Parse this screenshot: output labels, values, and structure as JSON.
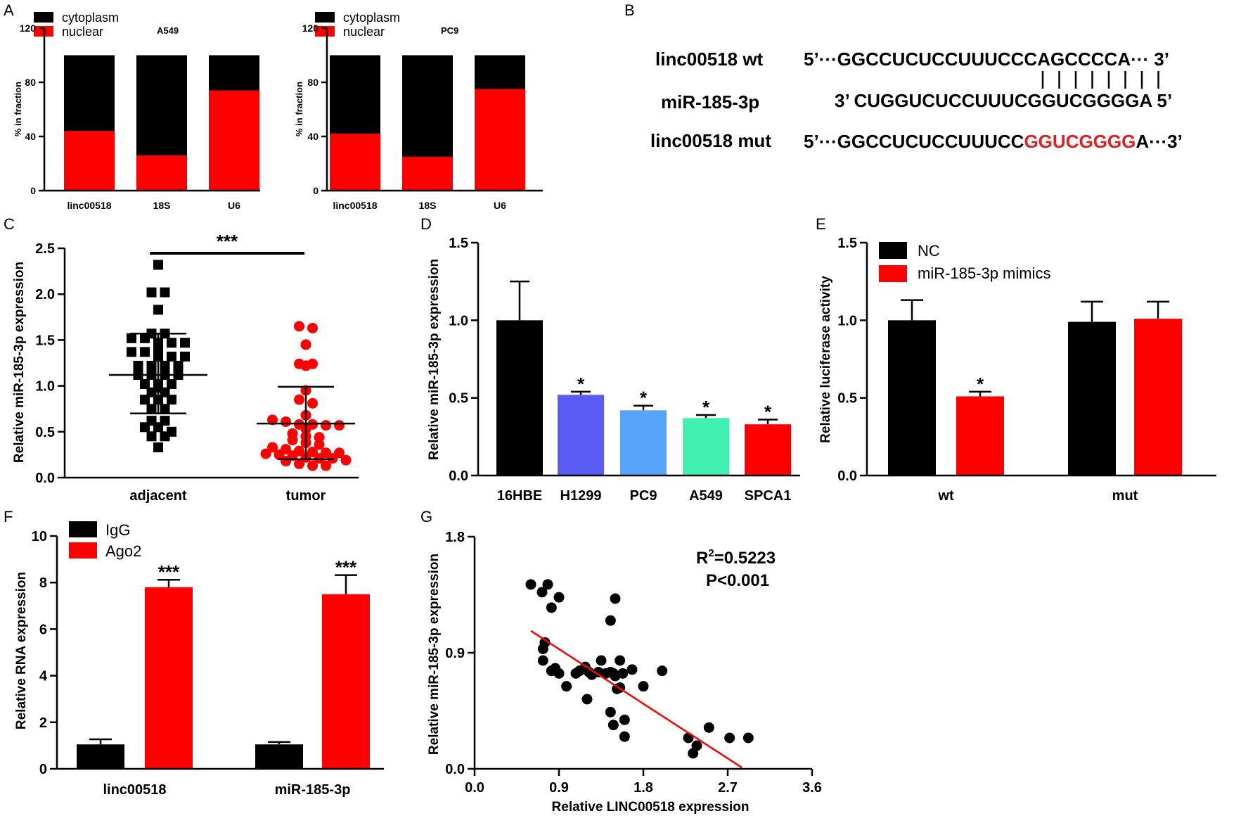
{
  "panels": {
    "A": "A",
    "B": "B",
    "C": "C",
    "D": "D",
    "E": "E",
    "F": "F",
    "G": "G"
  },
  "colors": {
    "black": "#000000",
    "red": "#ff0000",
    "H1299": "#5a5af5",
    "PC9": "#57a4fa",
    "A549": "#3ff0b0",
    "SPCA1": "#ff0000",
    "errorbar": "#000000"
  },
  "panel_b": {
    "wt_label": "linc00518 wt",
    "mir_label": "miR-185-3p",
    "mut_label": "linc00518 mut",
    "wt_seq": {
      "prefix": "5’···",
      "seq": "GGCCUCUCCUUUCCCAGCCCCA",
      "suffix": "··· 3’"
    },
    "mir_seq": {
      "prefix": "3’ ",
      "seq": "CUGGUCUCCUUUCGGUCGGGGA",
      "suffix": " 5’"
    },
    "mut_seq": {
      "prefix": "5’···",
      "normal": "GGCCUCUCCUUUCC",
      "mutated": "GGUCGGGG",
      "tail": "A",
      "suffix": "···3’"
    },
    "pairing_lines": 8
  },
  "chart_data": [
    {
      "id": "A-left",
      "type": "bar",
      "stacked": true,
      "title": "A549",
      "categories": [
        "linc00518",
        "18S",
        "U6"
      ],
      "series": [
        {
          "name": "nuclear",
          "values": [
            44,
            26,
            74
          ]
        },
        {
          "name": "cytoplasm",
          "values": [
            56,
            74,
            26
          ]
        }
      ],
      "legend": [
        "cytoplasm",
        "nuclear"
      ],
      "ylabel": "% in fraction",
      "ylim": [
        0,
        120
      ],
      "yticks": [
        "0",
        "40",
        "80",
        "120"
      ]
    },
    {
      "id": "A-right",
      "type": "bar",
      "stacked": true,
      "title": "PC9",
      "categories": [
        "linc00518",
        "18S",
        "U6"
      ],
      "series": [
        {
          "name": "nuclear",
          "values": [
            42,
            25,
            75
          ]
        },
        {
          "name": "cytoplasm",
          "values": [
            58,
            75,
            25
          ]
        }
      ],
      "legend": [
        "cytoplasm",
        "nuclear"
      ],
      "ylabel": "% in fraction",
      "ylim": [
        0,
        120
      ],
      "yticks": [
        "0",
        "40",
        "80",
        "120"
      ]
    },
    {
      "id": "C",
      "type": "scatter",
      "categories": [
        "adjacent",
        "tumor"
      ],
      "groups": [
        {
          "name": "adjacent",
          "marker": "square",
          "mean": 1.12,
          "sd_low": 0.7,
          "sd_high": 1.57,
          "values": [
            2.32,
            2.02,
            2.02,
            1.83,
            1.57,
            1.57,
            1.52,
            1.52,
            1.47,
            1.47,
            1.47,
            1.42,
            1.37,
            1.37,
            1.32,
            1.32,
            1.32,
            1.22,
            1.22,
            1.22,
            1.22,
            1.12,
            1.12,
            1.12,
            1.12,
            1.02,
            1.02,
            1.02,
            0.98,
            0.93,
            0.93,
            0.85,
            0.85,
            0.85,
            0.75,
            0.75,
            0.62,
            0.62,
            0.55,
            0.55,
            0.5,
            0.45,
            0.45,
            0.33
          ]
        },
        {
          "name": "tumor",
          "marker": "circle",
          "mean": 0.59,
          "sd_low": 0.2,
          "sd_high": 0.99,
          "values": [
            1.65,
            1.63,
            1.45,
            1.24,
            1.24,
            1.22,
            0.95,
            0.85,
            0.81,
            0.68,
            0.63,
            0.61,
            0.58,
            0.58,
            0.57,
            0.57,
            0.53,
            0.48,
            0.45,
            0.44,
            0.41,
            0.38,
            0.36,
            0.33,
            0.31,
            0.29,
            0.28,
            0.27,
            0.27,
            0.26,
            0.25,
            0.24,
            0.22,
            0.21,
            0.21,
            0.19,
            0.18,
            0.15,
            0.13,
            0.13
          ]
        }
      ],
      "significance": "***",
      "ylabel": "Relative miR-185-3p expression",
      "ylim": [
        0,
        2.5
      ],
      "yticks": [
        "0.0",
        "0.5",
        "1.0",
        "1.5",
        "2.0",
        "2.5"
      ]
    },
    {
      "id": "D",
      "type": "bar",
      "categories": [
        "16HBE",
        "H1299",
        "PC9",
        "A549",
        "SPCA1"
      ],
      "values": [
        1.0,
        0.52,
        0.42,
        0.37,
        0.33
      ],
      "errors": [
        0.25,
        0.02,
        0.03,
        0.02,
        0.03
      ],
      "labels": [
        "",
        "*",
        "*",
        "*",
        "*"
      ],
      "ylabel": "Relative miR-185-3p expression",
      "ylim": [
        0,
        1.5
      ],
      "yticks": [
        "0.0",
        "0.5",
        "1.0",
        "1.5"
      ]
    },
    {
      "id": "E",
      "type": "bar",
      "categories": [
        "wt",
        "mut"
      ],
      "series": [
        {
          "name": "NC",
          "values": [
            1.0,
            0.99
          ],
          "errors": [
            0.13,
            0.13
          ],
          "labels": [
            "",
            ""
          ]
        },
        {
          "name": "miR-185-3p mimics",
          "values": [
            0.51,
            1.01
          ],
          "errors": [
            0.03,
            0.11
          ],
          "labels": [
            "*",
            ""
          ]
        }
      ],
      "ylabel": "Relative luciferase activity",
      "ylim": [
        0,
        1.5
      ],
      "yticks": [
        "0.0",
        "0.5",
        "1.0",
        "1.5"
      ]
    },
    {
      "id": "F",
      "type": "bar",
      "categories": [
        "linc00518",
        "miR-185-3p"
      ],
      "series": [
        {
          "name": "IgG",
          "values": [
            1.05,
            1.05
          ],
          "errors": [
            0.22,
            0.1
          ],
          "labels": [
            "",
            ""
          ]
        },
        {
          "name": "Ago2",
          "values": [
            7.8,
            7.5
          ],
          "errors": [
            0.32,
            0.82
          ],
          "labels": [
            "***",
            "***"
          ]
        }
      ],
      "ylabel": "Relative RNA expression",
      "ylim": [
        0,
        10
      ],
      "yticks": [
        "0",
        "2",
        "4",
        "6",
        "8",
        "10"
      ]
    },
    {
      "id": "G",
      "type": "scatter",
      "xlabel": "Relative LINC00518 expression",
      "ylabel": "Relative miR-185-3p expression",
      "xlim": [
        0,
        3.6
      ],
      "ylim": [
        0,
        1.8
      ],
      "xticks": [
        "0.0",
        "0.9",
        "1.8",
        "2.7",
        "3.6"
      ],
      "yticks": [
        "0.0",
        "0.9",
        "1.8"
      ],
      "points": [
        [
          0.6,
          1.43
        ],
        [
          0.72,
          1.37
        ],
        [
          0.78,
          1.43
        ],
        [
          0.82,
          1.25
        ],
        [
          0.9,
          1.33
        ],
        [
          1.45,
          1.15
        ],
        [
          1.5,
          1.32
        ],
        [
          0.75,
          0.98
        ],
        [
          0.73,
          0.93
        ],
        [
          0.73,
          0.84
        ],
        [
          0.82,
          0.76
        ],
        [
          0.86,
          0.78
        ],
        [
          0.9,
          0.74
        ],
        [
          0.98,
          0.64
        ],
        [
          1.08,
          0.74
        ],
        [
          1.12,
          0.76
        ],
        [
          1.18,
          0.79
        ],
        [
          1.22,
          0.75
        ],
        [
          1.25,
          0.73
        ],
        [
          1.32,
          0.75
        ],
        [
          1.35,
          0.84
        ],
        [
          1.4,
          0.74
        ],
        [
          1.45,
          0.75
        ],
        [
          1.48,
          0.74
        ],
        [
          1.5,
          0.72
        ],
        [
          1.55,
          0.84
        ],
        [
          1.58,
          0.74
        ],
        [
          1.68,
          0.77
        ],
        [
          1.2,
          0.54
        ],
        [
          1.45,
          0.44
        ],
        [
          1.48,
          0.34
        ],
        [
          1.52,
          0.62
        ],
        [
          1.55,
          0.63
        ],
        [
          1.6,
          0.38
        ],
        [
          1.6,
          0.25
        ],
        [
          1.8,
          0.64
        ],
        [
          2.0,
          0.76
        ],
        [
          2.28,
          0.24
        ],
        [
          2.33,
          0.12
        ],
        [
          2.37,
          0.18
        ],
        [
          2.5,
          0.32
        ],
        [
          2.72,
          0.24
        ],
        [
          2.92,
          0.24
        ]
      ],
      "fit": {
        "x": [
          0.6,
          2.85
        ],
        "y": [
          1.07,
          0.01
        ]
      },
      "r2_text": "=0.5223",
      "p_text": "P<0.001"
    }
  ]
}
